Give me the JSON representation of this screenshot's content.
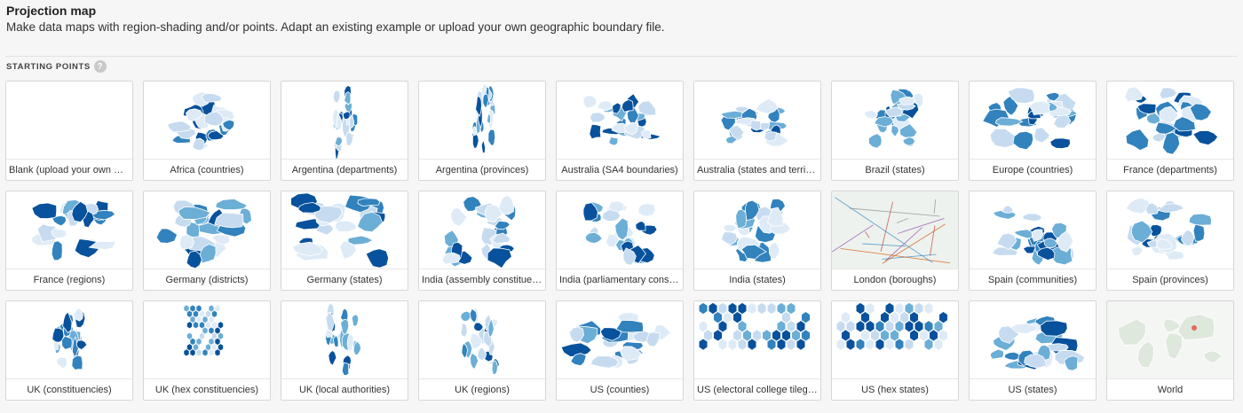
{
  "header": {
    "title": "Projection map",
    "subtitle": "Make data maps with region-shading and/or points. Adapt an existing example or upload your own geographic boundary file."
  },
  "section": {
    "label": "STARTING POINTS",
    "help": "?"
  },
  "colors": {
    "dark": "#08519c",
    "mid": "#3182bd",
    "light": "#6baed6",
    "pale": "#c6dbef",
    "paler": "#deebf7"
  },
  "cards": [
    {
      "label": "Blank (upload your own Ge…",
      "icon": "blank-map-icon"
    },
    {
      "label": "Africa (countries)",
      "icon": "africa-map-icon"
    },
    {
      "label": "Argentina (departments)",
      "icon": "argentina-map-icon"
    },
    {
      "label": "Argentina (provinces)",
      "icon": "argentina-map-icon"
    },
    {
      "label": "Australia (SA4 boundaries)",
      "icon": "australia-map-icon"
    },
    {
      "label": "Australia (states and territo…",
      "icon": "australia-map-icon"
    },
    {
      "label": "Brazil (states)",
      "icon": "brazil-map-icon"
    },
    {
      "label": "Europe (countries)",
      "icon": "europe-map-icon"
    },
    {
      "label": "France (departments)",
      "icon": "france-map-icon"
    },
    {
      "label": "France (regions)",
      "icon": "france-map-icon"
    },
    {
      "label": "Germany (districts)",
      "icon": "germany-map-icon"
    },
    {
      "label": "Germany (states)",
      "icon": "germany-map-icon"
    },
    {
      "label": "India (assembly constituen…",
      "icon": "india-map-icon"
    },
    {
      "label": "India (parliamentary consti…",
      "icon": "india-map-icon"
    },
    {
      "label": "India (states)",
      "icon": "india-map-icon"
    },
    {
      "label": "London (boroughs)",
      "icon": "london-map-icon"
    },
    {
      "label": "Spain (communities)",
      "icon": "spain-map-icon"
    },
    {
      "label": "Spain (provinces)",
      "icon": "spain-map-icon"
    },
    {
      "label": "UK (constituencies)",
      "icon": "uk-map-icon"
    },
    {
      "label": "UK (hex constituencies)",
      "icon": "uk-hex-map-icon"
    },
    {
      "label": "UK (local authorities)",
      "icon": "uk-map-icon"
    },
    {
      "label": "UK (regions)",
      "icon": "uk-map-icon"
    },
    {
      "label": "US (counties)",
      "icon": "us-map-icon"
    },
    {
      "label": "US (electoral college tilegra…",
      "icon": "us-hex-map-icon"
    },
    {
      "label": "US (hex states)",
      "icon": "us-hex-map-icon"
    },
    {
      "label": "US (states)",
      "icon": "us-map-icon"
    },
    {
      "label": "World",
      "icon": "world-map-icon"
    }
  ]
}
